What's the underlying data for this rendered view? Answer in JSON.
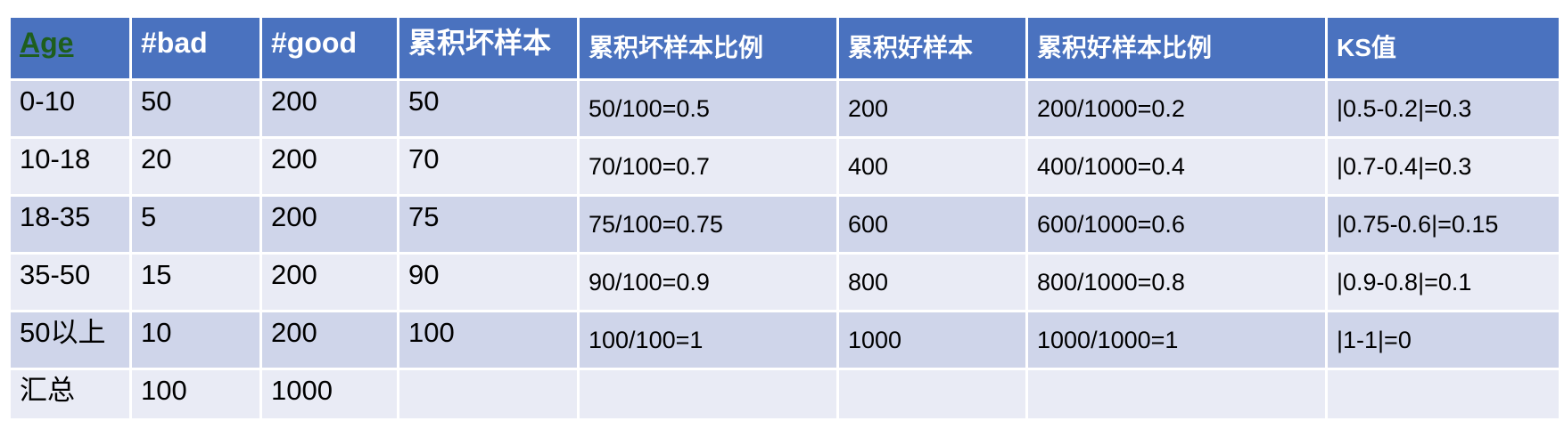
{
  "headers": [
    "Age",
    "#bad",
    "#good",
    "累积坏样本",
    "累积坏样本比例",
    "累积好样本",
    "累积好样本比例",
    "KS值"
  ],
  "rows": [
    [
      "0-10",
      "50",
      "200",
      "50",
      "50/100=0.5",
      "200",
      "200/1000=0.2",
      "|0.5-0.2|=0.3"
    ],
    [
      "10-18",
      "20",
      "200",
      "70",
      "70/100=0.7",
      "400",
      "400/1000=0.4",
      "|0.7-0.4|=0.3"
    ],
    [
      "18-35",
      "5",
      "200",
      "75",
      "75/100=0.75",
      "600",
      "600/1000=0.6",
      "|0.75-0.6|=0.15"
    ],
    [
      "35-50",
      "15",
      "200",
      "90",
      "90/100=0.9",
      "800",
      "800/1000=0.8",
      "|0.9-0.8|=0.1"
    ],
    [
      "50以上",
      "10",
      "200",
      "100",
      "100/100=1",
      "1000",
      "1000/1000=1",
      "|1-1|=0"
    ],
    [
      "汇总",
      "100",
      "1000",
      "",
      "",
      "",
      "",
      ""
    ]
  ],
  "colors": {
    "header": "#4a72bf",
    "row_odd": "#cfd5ea",
    "row_even": "#e9ebf5",
    "age_header": "#1e5e1e"
  }
}
